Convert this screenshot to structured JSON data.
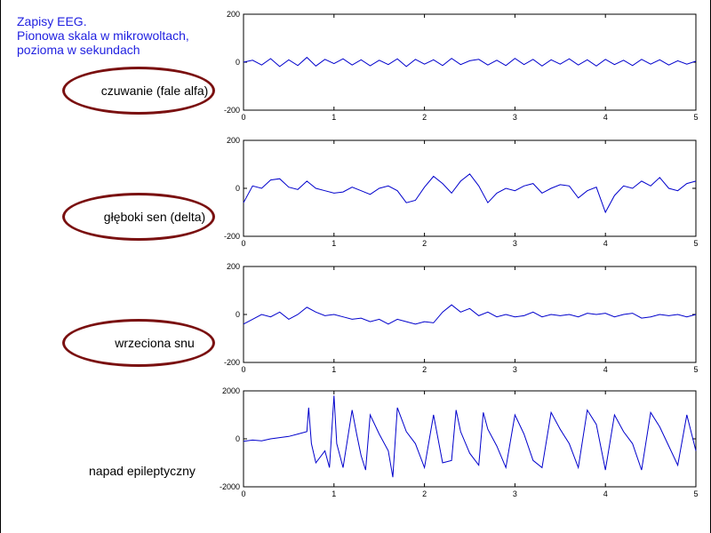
{
  "title_lines": [
    "Zapisy EEG.",
    "Pionowa skala w mikrowoltach,",
    "pozioma w sekundach"
  ],
  "colors": {
    "title": "#1f1fe0",
    "trace": "#0000cc",
    "oval": "#7a1010"
  },
  "panels": [
    {
      "label": "czuwanie (fale alfa)",
      "label_style": "oval"
    },
    {
      "label": "głęboki sen (delta)",
      "label_style": "oval"
    },
    {
      "label": "wrzeciona snu",
      "label_style": "oval"
    },
    {
      "label": "napad epileptyczny",
      "label_style": "plain"
    }
  ],
  "chart_data": [
    {
      "type": "line",
      "xlim": [
        0,
        5
      ],
      "ylim": [
        -200,
        200
      ],
      "xticks": [
        "0",
        "1",
        "2",
        "3",
        "4",
        "5"
      ],
      "yticks": [
        "-200",
        "0",
        "200"
      ],
      "series": [
        {
          "x": [
            0.0,
            0.1,
            0.2,
            0.3,
            0.4,
            0.5,
            0.6,
            0.7,
            0.8,
            0.9,
            1.0,
            1.1,
            1.2,
            1.3,
            1.4,
            1.5,
            1.6,
            1.7,
            1.8,
            1.9,
            2.0,
            2.1,
            2.2,
            2.3,
            2.4,
            2.5,
            2.6,
            2.7,
            2.8,
            2.9,
            3.0,
            3.1,
            3.2,
            3.3,
            3.4,
            3.5,
            3.6,
            3.7,
            3.8,
            3.9,
            4.0,
            4.1,
            4.2,
            4.3,
            4.4,
            4.5,
            4.6,
            4.7,
            4.8,
            4.9,
            5.0
          ],
          "y": [
            0,
            8,
            -12,
            15,
            -18,
            10,
            -14,
            20,
            -16,
            12,
            -6,
            14,
            -12,
            10,
            -15,
            8,
            -10,
            14,
            -18,
            12,
            -8,
            10,
            -14,
            16,
            -10,
            6,
            12,
            -12,
            8,
            -14,
            16,
            -10,
            12,
            -16,
            10,
            -8,
            14,
            -12,
            10,
            -16,
            12,
            -10,
            8,
            -14,
            12,
            -8,
            10,
            -12,
            6,
            -8,
            4
          ]
        }
      ]
    },
    {
      "type": "line",
      "xlim": [
        0,
        5
      ],
      "ylim": [
        -200,
        200
      ],
      "xticks": [
        "0",
        "1",
        "2",
        "3",
        "4",
        "5"
      ],
      "yticks": [
        "-200",
        "0",
        "200"
      ],
      "series": [
        {
          "x": [
            0.0,
            0.1,
            0.2,
            0.3,
            0.4,
            0.5,
            0.6,
            0.7,
            0.8,
            0.9,
            1.0,
            1.1,
            1.2,
            1.3,
            1.4,
            1.5,
            1.6,
            1.7,
            1.8,
            1.9,
            2.0,
            2.1,
            2.2,
            2.3,
            2.4,
            2.5,
            2.6,
            2.7,
            2.8,
            2.9,
            3.0,
            3.1,
            3.2,
            3.3,
            3.4,
            3.5,
            3.6,
            3.7,
            3.8,
            3.9,
            4.0,
            4.1,
            4.2,
            4.3,
            4.4,
            4.5,
            4.6,
            4.7,
            4.8,
            4.9,
            5.0
          ],
          "y": [
            -60,
            10,
            0,
            35,
            40,
            5,
            -5,
            30,
            0,
            -10,
            -20,
            -15,
            5,
            -10,
            -25,
            0,
            10,
            -10,
            -60,
            -50,
            5,
            50,
            20,
            -20,
            30,
            60,
            10,
            -60,
            -20,
            0,
            -10,
            10,
            20,
            -20,
            0,
            15,
            10,
            -40,
            -10,
            5,
            -100,
            -30,
            10,
            0,
            30,
            10,
            45,
            0,
            -10,
            20,
            30
          ]
        }
      ]
    },
    {
      "type": "line",
      "xlim": [
        0,
        5
      ],
      "ylim": [
        -200,
        200
      ],
      "xticks": [
        "0",
        "1",
        "2",
        "3",
        "4",
        "5"
      ],
      "yticks": [
        "-200",
        "0",
        "200"
      ],
      "series": [
        {
          "x": [
            0.0,
            0.1,
            0.2,
            0.3,
            0.4,
            0.5,
            0.6,
            0.7,
            0.8,
            0.9,
            1.0,
            1.1,
            1.2,
            1.3,
            1.4,
            1.5,
            1.6,
            1.7,
            1.8,
            1.9,
            2.0,
            2.1,
            2.2,
            2.3,
            2.4,
            2.5,
            2.6,
            2.7,
            2.8,
            2.9,
            3.0,
            3.1,
            3.2,
            3.3,
            3.4,
            3.5,
            3.6,
            3.7,
            3.8,
            3.9,
            4.0,
            4.1,
            4.2,
            4.3,
            4.4,
            4.5,
            4.6,
            4.7,
            4.8,
            4.9,
            5.0
          ],
          "y": [
            -40,
            -20,
            0,
            -10,
            10,
            -20,
            0,
            30,
            10,
            -5,
            0,
            -10,
            -20,
            -15,
            -30,
            -20,
            -40,
            -20,
            -30,
            -40,
            -30,
            -35,
            10,
            40,
            10,
            25,
            -5,
            10,
            -10,
            0,
            -10,
            -5,
            10,
            -10,
            0,
            -5,
            0,
            -10,
            5,
            0,
            5,
            -10,
            0,
            5,
            -15,
            -10,
            0,
            -5,
            0,
            -10,
            0
          ]
        }
      ]
    },
    {
      "type": "line",
      "xlim": [
        0,
        5
      ],
      "ylim": [
        -2000,
        2000
      ],
      "xticks": [
        "0",
        "1",
        "2",
        "3",
        "4",
        "5"
      ],
      "yticks": [
        "-2000",
        "0",
        "2000"
      ],
      "series": [
        {
          "x": [
            0.0,
            0.1,
            0.2,
            0.3,
            0.4,
            0.5,
            0.6,
            0.7,
            0.72,
            0.75,
            0.8,
            0.9,
            0.95,
            1.0,
            1.03,
            1.1,
            1.2,
            1.25,
            1.3,
            1.35,
            1.4,
            1.5,
            1.6,
            1.65,
            1.7,
            1.8,
            1.9,
            2.0,
            2.1,
            2.2,
            2.3,
            2.35,
            2.4,
            2.5,
            2.6,
            2.65,
            2.7,
            2.8,
            2.9,
            3.0,
            3.1,
            3.2,
            3.3,
            3.4,
            3.5,
            3.6,
            3.7,
            3.8,
            3.9,
            4.0,
            4.1,
            4.2,
            4.3,
            4.4,
            4.5,
            4.6,
            4.7,
            4.8,
            4.9,
            5.0
          ],
          "y": [
            -100,
            -50,
            -80,
            0,
            50,
            100,
            200,
            300,
            1300,
            -200,
            -1000,
            -500,
            -1200,
            1800,
            -200,
            -1200,
            1200,
            200,
            -700,
            -1300,
            1000,
            200,
            -500,
            -1600,
            1300,
            300,
            -200,
            -1200,
            1000,
            -1000,
            -900,
            1200,
            300,
            -600,
            -1100,
            1100,
            400,
            -300,
            -1200,
            1000,
            200,
            -900,
            -1200,
            1100,
            400,
            -200,
            -1200,
            1200,
            600,
            -1300,
            1000,
            300,
            -200,
            -1300,
            1100,
            500,
            -300,
            -1100,
            1000,
            -500
          ]
        }
      ]
    }
  ]
}
